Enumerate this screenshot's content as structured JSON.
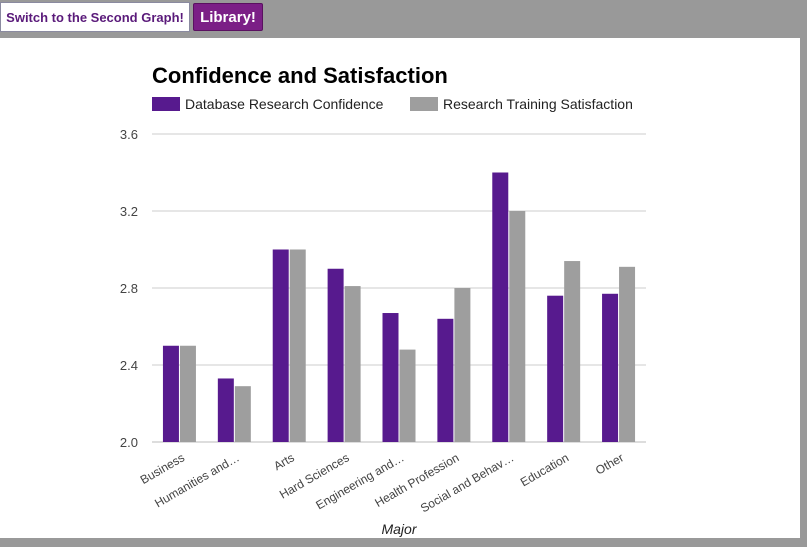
{
  "toolbar": {
    "switch_label": "Switch to the Second Graph!",
    "library_label": "Library!"
  },
  "colors": {
    "series1": "#571a8e",
    "series2": "#9e9e9e",
    "grid": "#cccccc",
    "axis_text": "#444444",
    "title": "#000000"
  },
  "chart_data": {
    "type": "bar",
    "title": "Confidence and Satisfaction",
    "xlabel": "Major",
    "ylabel": "",
    "ylim": [
      2.0,
      3.6
    ],
    "yticks": [
      "2.0",
      "2.4",
      "2.8",
      "3.2",
      "3.6"
    ],
    "ytick_values": [
      2.0,
      2.4,
      2.8,
      3.2,
      3.6
    ],
    "grid": true,
    "legend_position": "top",
    "categories": [
      "Business",
      "Humanities and…",
      "Arts",
      "Hard Sciences",
      "Engineering and…",
      "Health Profession",
      "Social and Behav…",
      "Education",
      "Other"
    ],
    "series": [
      {
        "name": "Database Research Confidence",
        "values": [
          2.5,
          2.33,
          3.0,
          2.9,
          2.67,
          2.64,
          3.4,
          2.76,
          2.77
        ]
      },
      {
        "name": "Research Training Satisfaction",
        "values": [
          2.5,
          2.29,
          3.0,
          2.81,
          2.48,
          2.8,
          3.2,
          2.94,
          2.91
        ]
      }
    ]
  }
}
